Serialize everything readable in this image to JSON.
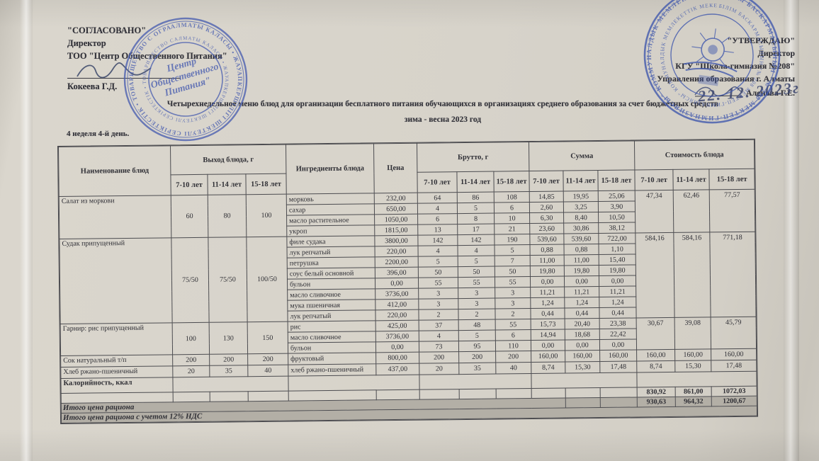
{
  "approvals": {
    "left": {
      "title": "\"СОГЛАСОВАНО\"",
      "role": "Директор",
      "org": "ТОО \"Центр Общественного Питания\"",
      "name": "Кокеева Г.Д."
    },
    "right": {
      "title": "\"УТВЕРЖДАЮ\"",
      "role": "Директор",
      "org": "КГУ \"Школа-гимназия №208\"",
      "org2": "Управления образования г. Алматы",
      "name": "Аленова Г.Е.",
      "handwritten_date": "22. 12. 2023г"
    }
  },
  "stamps": {
    "left": {
      "ring_text": "АЛМАТЫ КАЛАСЫ • ЖАУАПКЕРШІЛІГІ ШЕКТЕУЛІ СЕРІКТЕСТІК • ТОВАРИЩЕСТВО С ОГРАНИЧЕННОЙ ОТВЕТСТВЕННОСТЬЮ • РЕСПУБЛИКА КАЗАХСТАН • ",
      "center_line1": "Центр",
      "center_line2": "Общественного",
      "center_line3": "Питания\"",
      "ink_color": "#4a5fb0"
    },
    "right": {
      "ring_text": "БІЛІМ БАСКАРМАСЫНЫН \"№ 208 МЕКТЕП-ГИМНАЗИЯСЫ\" КОММУНАЛДЫК МЕМЛЕКЕТТІК МЕКЕМЕСІ • ",
      "ink_color": "#3f57ad"
    }
  },
  "title": {
    "line1": "Четырехнедельное меню блюд для организации бесплатного питания обучающихся в организациях среднего образования за счет бюджетных средств",
    "line2": "зима - весна 2023 год"
  },
  "subtitle": "4 неделя 4-й день.",
  "table": {
    "headers": {
      "name": "Наименование блюд",
      "out": "Выход блюда, г",
      "ingredients": "Ингредиенты блюда",
      "price": "Цена",
      "brutto": "Брутто, г",
      "summa": "Сумма",
      "cost": "Стоимость блюда"
    },
    "age_labels": [
      "7-10 лет",
      "11-14 лет",
      "15-18 лет"
    ],
    "groups": [
      {
        "dish": "Салат из моркови",
        "out": [
          "60",
          "80",
          "100"
        ],
        "cost": [
          "47,34",
          "62,46",
          "77,57"
        ],
        "rows": [
          {
            "ingredient": "морковь",
            "price": "232,00",
            "brutto": [
              "64",
              "86",
              "108"
            ],
            "sum": [
              "14,85",
              "19,95",
              "25,06"
            ]
          },
          {
            "ingredient": "сахар",
            "price": "650,00",
            "brutto": [
              "4",
              "5",
              "6"
            ],
            "sum": [
              "2,60",
              "3,25",
              "3,90"
            ]
          },
          {
            "ingredient": "масло растительное",
            "price": "1050,00",
            "brutto": [
              "6",
              "8",
              "10"
            ],
            "sum": [
              "6,30",
              "8,40",
              "10,50"
            ]
          },
          {
            "ingredient": "укроп",
            "price": "1815,00",
            "brutto": [
              "13",
              "17",
              "21"
            ],
            "sum": [
              "23,60",
              "30,86",
              "38,12"
            ]
          }
        ]
      },
      {
        "dish": "Судак припущенный",
        "out": [
          "75/50",
          "75/50",
          "100/50"
        ],
        "cost": [
          "584,16",
          "584,16",
          "771,18"
        ],
        "rows": [
          {
            "ingredient": "филе судака",
            "price": "3800,00",
            "brutto": [
              "142",
              "142",
              "190"
            ],
            "sum": [
              "539,60",
              "539,60",
              "722,00"
            ]
          },
          {
            "ingredient": "лук репчатый",
            "price": "220,00",
            "brutto": [
              "4",
              "4",
              "5"
            ],
            "sum": [
              "0,88",
              "0,88",
              "1,10"
            ]
          },
          {
            "ingredient": "петрушка",
            "price": "2200,00",
            "brutto": [
              "5",
              "5",
              "7"
            ],
            "sum": [
              "11,00",
              "11,00",
              "15,40"
            ]
          },
          {
            "ingredient": "соус белый основной",
            "price": "396,00",
            "brutto": [
              "50",
              "50",
              "50"
            ],
            "sum": [
              "19,80",
              "19,80",
              "19,80"
            ]
          },
          {
            "ingredient": "бульон",
            "price": "0,00",
            "brutto": [
              "55",
              "55",
              "55"
            ],
            "sum": [
              "0,00",
              "0,00",
              "0,00"
            ]
          },
          {
            "ingredient": "масло сливочное",
            "price": "3736,00",
            "brutto": [
              "3",
              "3",
              "3"
            ],
            "sum": [
              "11,21",
              "11,21",
              "11,21"
            ]
          },
          {
            "ingredient": "мука пшеничная",
            "price": "412,00",
            "brutto": [
              "3",
              "3",
              "3"
            ],
            "sum": [
              "1,24",
              "1,24",
              "1,24"
            ]
          },
          {
            "ingredient": "лук репчатый",
            "price": "220,00",
            "brutto": [
              "2",
              "2",
              "2"
            ],
            "sum": [
              "0,44",
              "0,44",
              "0,44"
            ]
          }
        ]
      },
      {
        "dish": "Гарнир: рис припущенный",
        "out": [
          "100",
          "130",
          "150"
        ],
        "cost": [
          "30,67",
          "39,08",
          "45,79"
        ],
        "rows": [
          {
            "ingredient": "рис",
            "price": "425,00",
            "brutto": [
              "37",
              "48",
              "55"
            ],
            "sum": [
              "15,73",
              "20,40",
              "23,38"
            ]
          },
          {
            "ingredient": "масло сливочное",
            "price": "3736,00",
            "brutto": [
              "4",
              "5",
              "6"
            ],
            "sum": [
              "14,94",
              "18,68",
              "22,42"
            ]
          },
          {
            "ingredient": "бульон",
            "price": "0,00",
            "brutto": [
              "73",
              "95",
              "110"
            ],
            "sum": [
              "0,00",
              "0,00",
              "0,00"
            ]
          }
        ]
      },
      {
        "dish": "Сок натуральный т/п",
        "out": [
          "200",
          "200",
          "200"
        ],
        "cost": [
          "160,00",
          "160,00",
          "160,00"
        ],
        "rows": [
          {
            "ingredient": "фруктовый",
            "price": "800,00",
            "brutto": [
              "200",
              "200",
              "200"
            ],
            "sum": [
              "160,00",
              "160,00",
              "160,00"
            ]
          }
        ]
      },
      {
        "dish": "Хлеб ржано-пшеничный",
        "out": [
          "20",
          "35",
          "40"
        ],
        "cost": [
          "8,74",
          "15,30",
          "17,48"
        ],
        "rows": [
          {
            "ingredient": "хлеб ржано-пшеничный",
            "price": "437,00",
            "brutto": [
              "20",
              "35",
              "40"
            ],
            "sum": [
              "8,74",
              "15,30",
              "17,48"
            ]
          }
        ]
      }
    ],
    "footer": {
      "kcal_label": "Калорийность, ккал",
      "subtotal": [
        "830,92",
        "861,00",
        "1072,03"
      ],
      "total_label": "Итого цена рациона",
      "total": [
        "930,63",
        "964,32",
        "1200,67"
      ],
      "total_vat_label": "Итого цена рациона с учетом 12% НДС"
    }
  }
}
